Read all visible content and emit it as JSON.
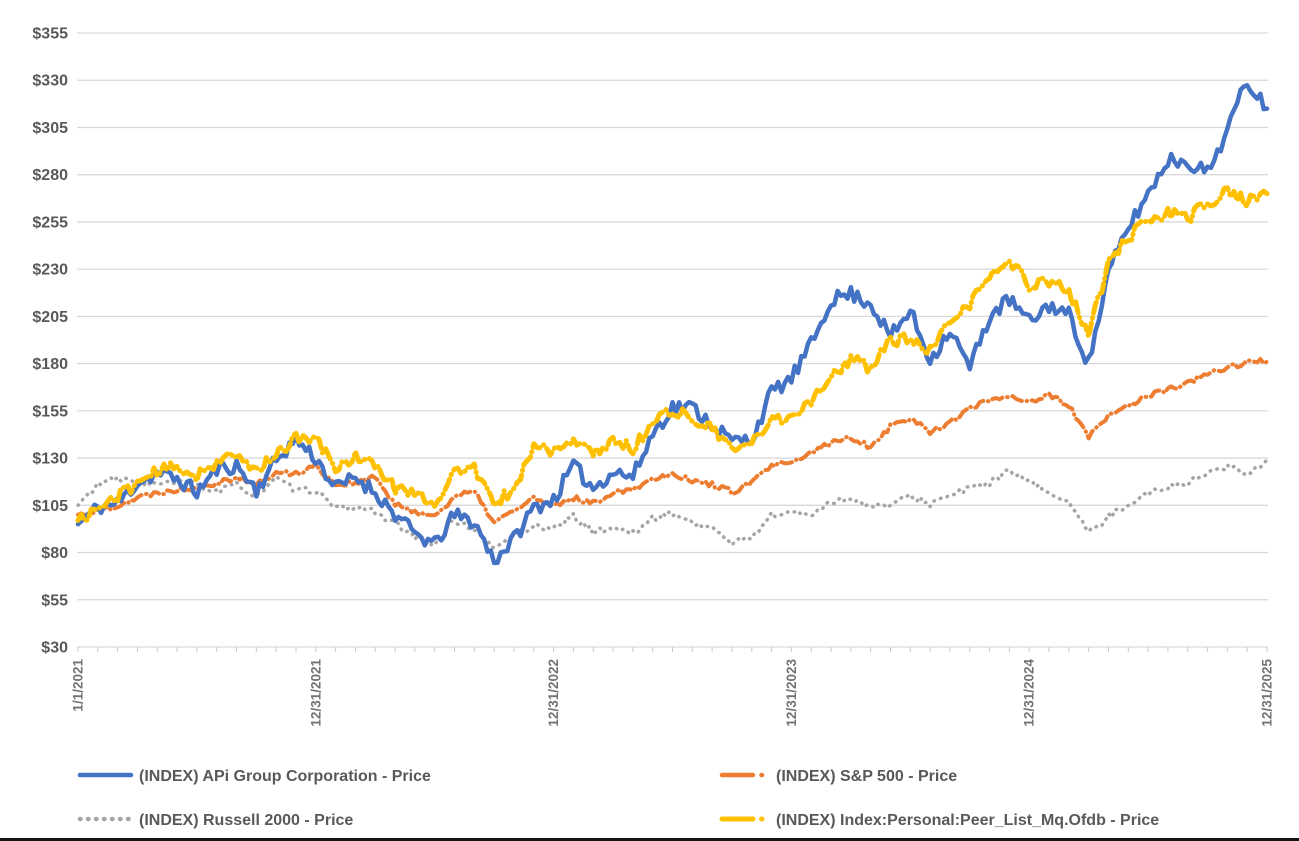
{
  "chart_data": {
    "type": "line",
    "title": "",
    "x_axis": {
      "tick_labels": [
        "1/1/2021",
        "12/31/2021",
        "12/31/2022",
        "12/31/2023",
        "12/31/2024",
        "12/31/2025"
      ],
      "tick_month_offsets": [
        0,
        12,
        24,
        36,
        48,
        60
      ],
      "minor_tick_unit": "month",
      "range_months": 60
    },
    "y_axis": {
      "ticks": [
        30,
        55,
        80,
        105,
        130,
        155,
        180,
        205,
        230,
        255,
        280,
        305,
        330,
        355
      ],
      "prefix": "$",
      "ylim": [
        30,
        355
      ],
      "grid": true
    },
    "colors": {
      "label_text": "#595959",
      "x_label_text": "#737373",
      "gridline": "#D9D9D9",
      "tick": "#C9C9C9"
    },
    "series": [
      {
        "name": "(INDEX) APi Group Corporation - Price",
        "color": "#4472C4",
        "style": "solid",
        "width": 4.5,
        "noise": 4,
        "seed": 11,
        "monthly_values": [
          95,
          104,
          106,
          117,
          122,
          119,
          112,
          124,
          126,
          113,
          129,
          140,
          130,
          114,
          120,
          112,
          100,
          90,
          84,
          100,
          96,
          76,
          87,
          104,
          108,
          126,
          114,
          123,
          120,
          143,
          157,
          157,
          148,
          139,
          140,
          165,
          172,
          190,
          214,
          217,
          212,
          194,
          208,
          182,
          198,
          178,
          205,
          214,
          202,
          211,
          206,
          180,
          228,
          252,
          270,
          288,
          287,
          281,
          304,
          330,
          315
        ]
      },
      {
        "name": "(INDEX) S&P 500 - Price",
        "color": "#ED7D31",
        "style": "dash-dot",
        "width": 4,
        "noise": 1.5,
        "seed": 22,
        "monthly_values": [
          100,
          102,
          105,
          109,
          112,
          113,
          115,
          117,
          120,
          116,
          122,
          122,
          126,
          116,
          117,
          120,
          105,
          102,
          99,
          110,
          112,
          96,
          102,
          109,
          104,
          109,
          106,
          112,
          114,
          119,
          122,
          118,
          116,
          112,
          117,
          126,
          127,
          133,
          138,
          141,
          136,
          147,
          151,
          144,
          149,
          156,
          161,
          163,
          160,
          163,
          158,
          141,
          152,
          158,
          163,
          166,
          170,
          174,
          178,
          181,
          181
        ]
      },
      {
        "name": "(INDEX) Russell 2000 - Price",
        "color": "#A5A5A5",
        "style": "dot",
        "width": 3.5,
        "noise": 1.7,
        "seed": 33,
        "monthly_values": [
          105,
          116,
          119,
          117,
          116,
          117,
          116,
          112,
          116,
          110,
          119,
          113,
          113,
          103,
          104,
          102,
          95,
          88,
          85,
          97,
          92,
          82,
          90,
          94,
          93,
          99,
          91,
          93,
          90,
          98,
          101,
          96,
          93,
          85,
          88,
          100,
          101,
          100,
          107,
          109,
          104,
          105,
          110,
          106,
          110,
          114,
          117,
          123,
          117,
          112,
          107,
          90,
          99,
          106,
          111,
          115,
          117,
          122,
          126,
          121,
          129
        ]
      },
      {
        "name": "(INDEX) Index:Personal:Peer_List_Mq.Ofdb - Price",
        "color": "#FFC000",
        "style": "dash-dot",
        "width": 5,
        "noise": 3.2,
        "seed": 44,
        "monthly_values": [
          97,
          103,
          110,
          117,
          123,
          125,
          121,
          128,
          131,
          123,
          133,
          140,
          140,
          125,
          131,
          126,
          114,
          112,
          106,
          122,
          125,
          105,
          114,
          136,
          134,
          138,
          133,
          139,
          135,
          149,
          156,
          150,
          146,
          134,
          138,
          150,
          152,
          161,
          173,
          182,
          178,
          192,
          193,
          186,
          201,
          212,
          226,
          234,
          222,
          224,
          218,
          196,
          233,
          247,
          255,
          260,
          257,
          265,
          271,
          266,
          270
        ]
      }
    ],
    "legend": {
      "position": "bottom",
      "columns": 2,
      "layout": "left column: series 0 over series 2; right column: series 1 over series 3"
    }
  }
}
